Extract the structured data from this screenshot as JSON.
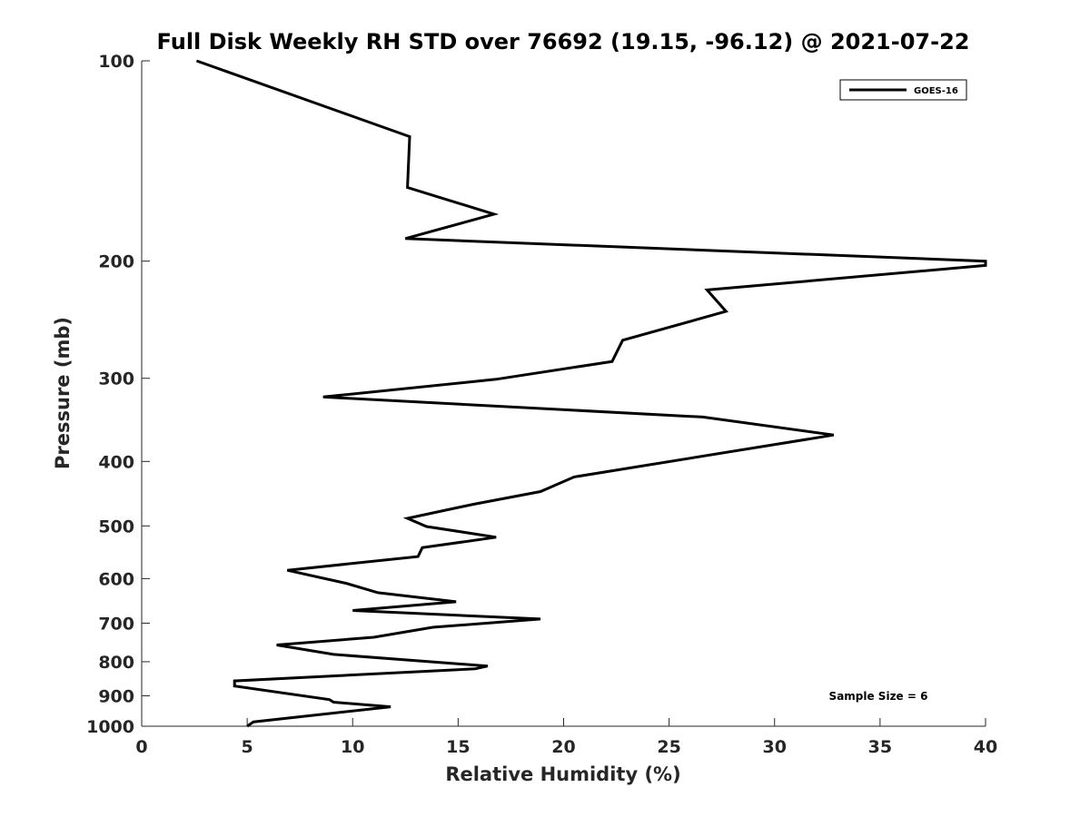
{
  "chart_data": {
    "type": "line",
    "title": "Full Disk Weekly RH STD over 76692 (19.15, -96.12) @ 2021-07-22",
    "xlabel": "Relative Humidity (%)",
    "ylabel": "Pressure (mb)",
    "xlim": [
      0,
      40
    ],
    "ylim": [
      1000,
      100
    ],
    "y_scale": "log",
    "y_reversed": true,
    "grid": false,
    "x_ticks": [
      0,
      5,
      10,
      15,
      20,
      25,
      30,
      35,
      40
    ],
    "y_ticks": [
      100,
      200,
      300,
      400,
      500,
      600,
      700,
      800,
      900,
      1000
    ],
    "legend_position": "top-right",
    "series": [
      {
        "name": "GOES-16",
        "color": "#000000",
        "x": [
          2.6,
          12.7,
          12.6,
          16.7,
          12.5,
          40.0,
          40.0,
          26.8,
          27.7,
          22.8,
          22.3,
          16.8,
          8.6,
          26.6,
          32.8,
          20.5,
          18.9,
          15.7,
          12.6,
          13.5,
          16.8,
          13.3,
          13.1,
          6.9,
          9.7,
          11.2,
          14.9,
          10.0,
          18.9,
          13.8,
          11.0,
          6.4,
          9.1,
          16.4,
          15.8,
          4.4,
          4.4,
          8.9,
          9.1,
          11.8,
          5.3,
          5.0
        ],
        "y": [
          100,
          130,
          155,
          170,
          185,
          200,
          203,
          221,
          238,
          263,
          283,
          301,
          320,
          343,
          365,
          422,
          444,
          464,
          487,
          501,
          520,
          539,
          556,
          583,
          610,
          630,
          650,
          670,
          690,
          710,
          735,
          755,
          780,
          812,
          820,
          855,
          870,
          912,
          920,
          935,
          985,
          1000
        ]
      }
    ],
    "annotations": [
      "Sample Size = 6"
    ]
  }
}
